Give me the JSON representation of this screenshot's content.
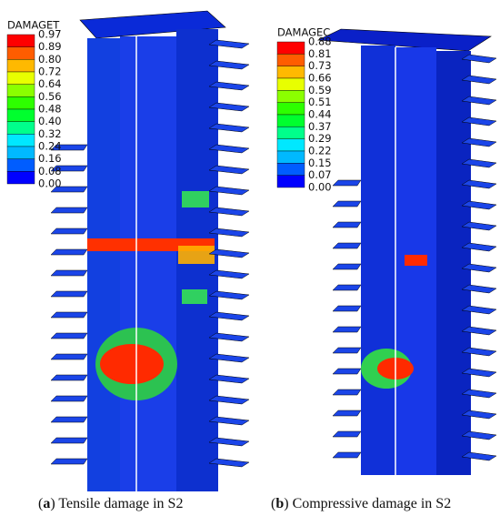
{
  "panels": [
    {
      "legend": {
        "title": "DAMAGET",
        "labels": [
          "0.97",
          "0.89",
          "0.80",
          "0.72",
          "0.64",
          "0.56",
          "0.48",
          "0.40",
          "0.32",
          "0.24",
          "0.16",
          "0.08",
          "0.00"
        ]
      },
      "caption": {
        "open": "(",
        "label": "a",
        "text": ") Tensile damage in S2"
      }
    },
    {
      "legend": {
        "title": "DAMAGEC",
        "labels": [
          "0.88",
          "0.81",
          "0.73",
          "0.66",
          "0.59",
          "0.51",
          "0.44",
          "0.37",
          "0.29",
          "0.22",
          "0.15",
          "0.07",
          "0.00"
        ]
      },
      "caption": {
        "open": "(",
        "label": "b",
        "text": ") Compressive damage in S2"
      }
    }
  ]
}
